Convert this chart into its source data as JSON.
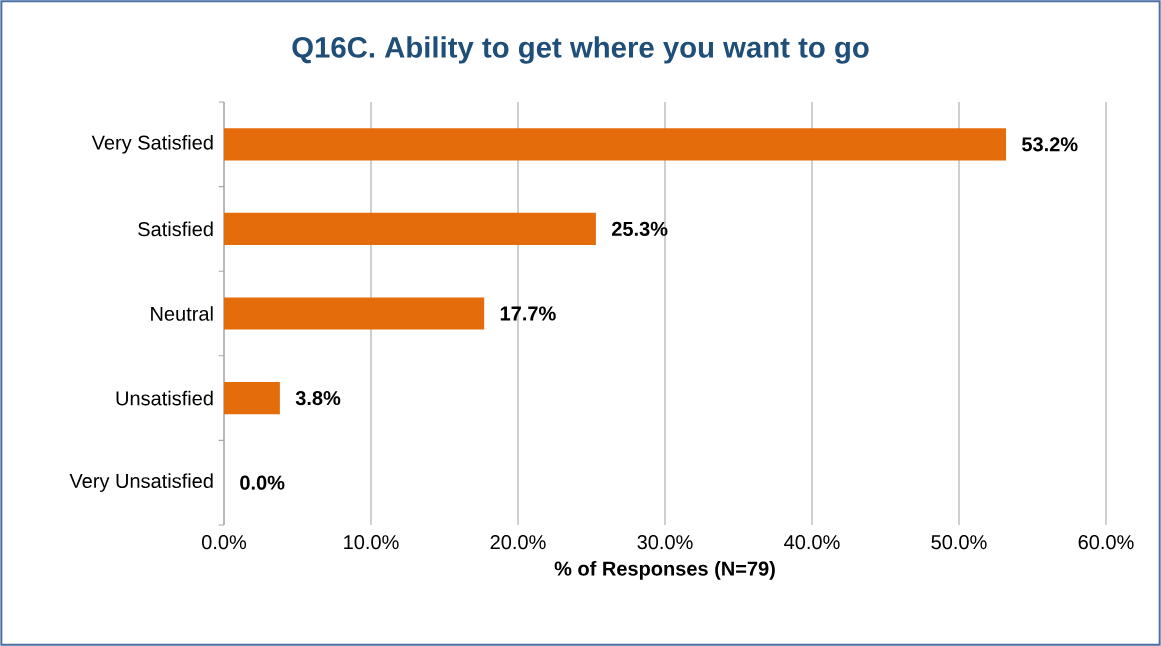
{
  "chart_data": {
    "type": "bar",
    "orientation": "horizontal",
    "title": "Q16C. Ability to get where you want to go",
    "xlabel": "% of Responses (N=79)",
    "categories": [
      "Very Satisfied",
      "Satisfied",
      "Neutral",
      "Unsatisfied",
      "Very Unsatisfied"
    ],
    "values": [
      53.2,
      25.3,
      17.7,
      3.8,
      0.0
    ],
    "value_labels": [
      "53.2%",
      "25.3%",
      "17.7%",
      "3.8%",
      "0.0%"
    ],
    "color": "#e46c0a",
    "xlim": [
      0,
      60
    ],
    "xticks": [
      {
        "value": 0,
        "label": "0.0%"
      },
      {
        "value": 10,
        "label": "10.0%"
      },
      {
        "value": 20,
        "label": "20.0%"
      },
      {
        "value": 30,
        "label": "30.0%"
      },
      {
        "value": 40,
        "label": "40.0%"
      },
      {
        "value": 50,
        "label": "50.0%"
      },
      {
        "value": 60,
        "label": "60.0%"
      }
    ],
    "grid": "x"
  }
}
